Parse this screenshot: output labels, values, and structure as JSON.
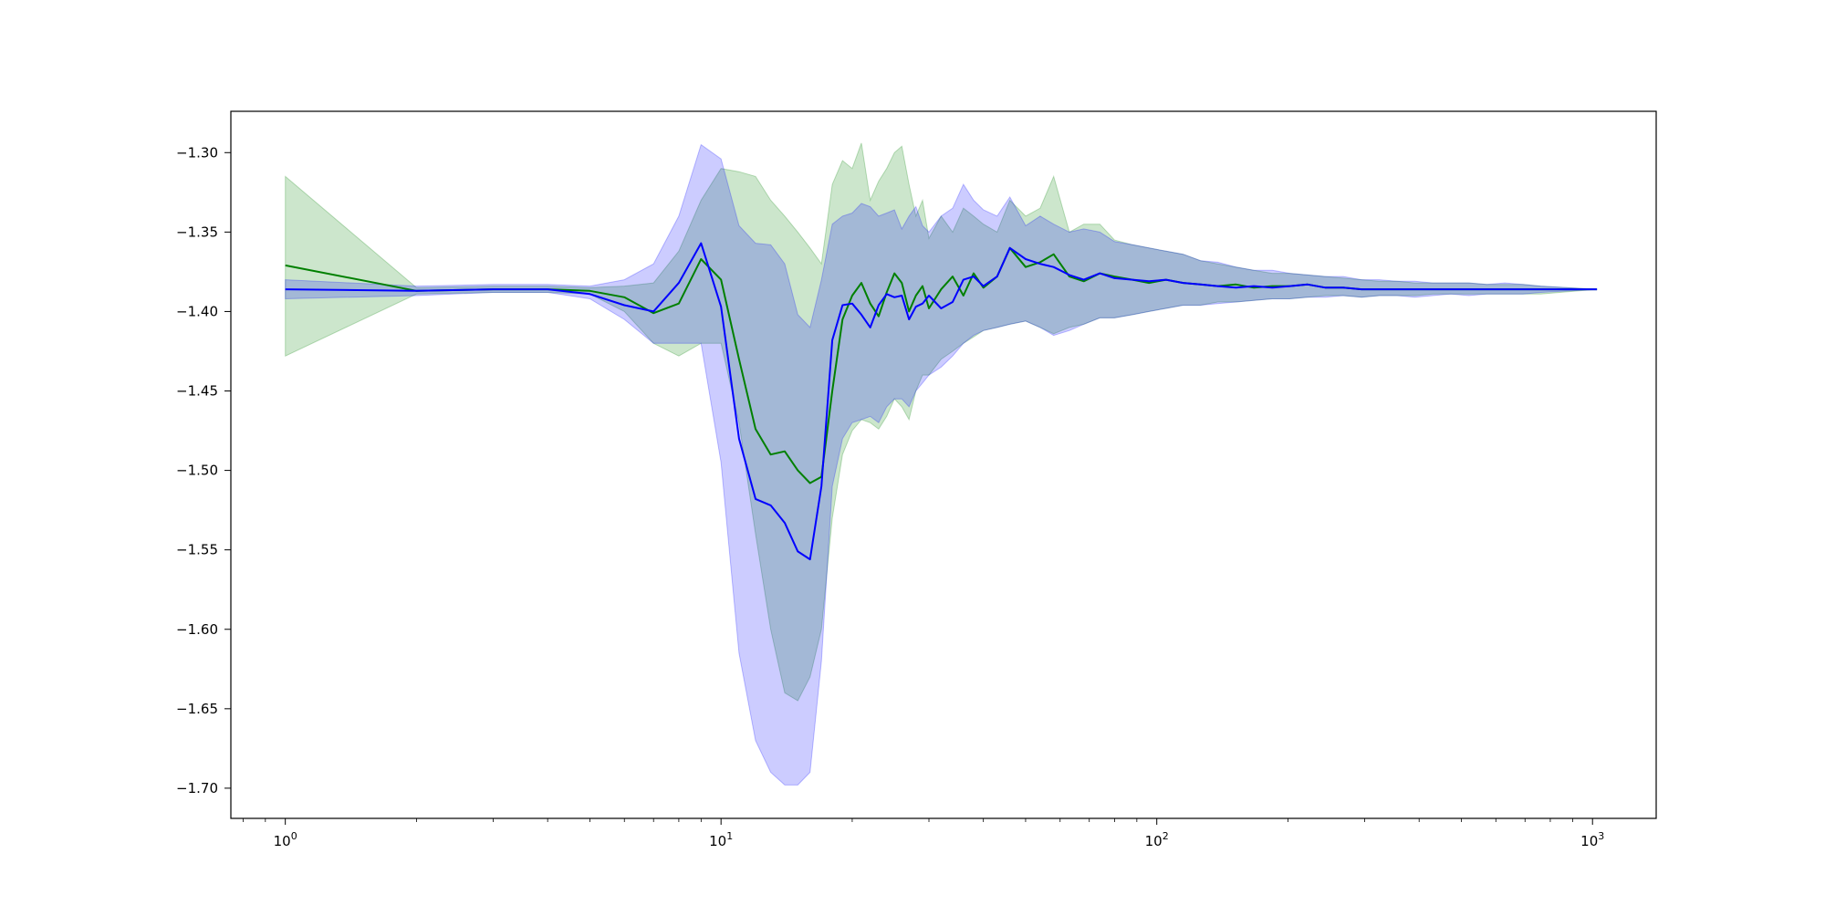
{
  "chart_data": {
    "type": "line",
    "title": "",
    "xlabel": "",
    "ylabel": "",
    "xscale": "log",
    "xlim": [
      0.75,
      1400
    ],
    "ylim": [
      -1.719,
      -1.274
    ],
    "grid": false,
    "legend": "none",
    "x_ticks": [
      {
        "value": 1,
        "base": "10",
        "exp": "0"
      },
      {
        "value": 10,
        "base": "10",
        "exp": "1"
      },
      {
        "value": 100,
        "base": "10",
        "exp": "2"
      },
      {
        "value": 1000,
        "base": "10",
        "exp": "3"
      }
    ],
    "y_ticks": [
      {
        "value": -1.3,
        "label": "−1.30"
      },
      {
        "value": -1.35,
        "label": "−1.35"
      },
      {
        "value": -1.4,
        "label": "−1.40"
      },
      {
        "value": -1.45,
        "label": "−1.45"
      },
      {
        "value": -1.5,
        "label": "−1.50"
      },
      {
        "value": -1.55,
        "label": "−1.55"
      },
      {
        "value": -1.6,
        "label": "−1.60"
      },
      {
        "value": -1.65,
        "label": "−1.65"
      },
      {
        "value": -1.7,
        "label": "−1.70"
      }
    ],
    "series": [
      {
        "color": "#008000",
        "band_color": "#008000",
        "band_opacity": 0.2,
        "x": [
          1,
          2,
          3,
          4,
          5,
          6,
          7,
          8,
          9,
          10,
          11,
          12,
          13,
          14,
          15,
          16,
          17,
          18,
          19,
          20,
          21,
          22,
          23,
          24,
          25,
          26,
          27,
          28,
          29,
          30,
          32,
          34,
          36,
          38,
          40,
          43,
          46,
          50,
          54,
          58,
          63,
          68,
          74,
          80,
          88,
          96,
          105,
          115,
          126,
          138,
          152,
          167,
          184,
          202,
          222,
          244,
          268,
          295,
          324,
          356,
          391,
          430,
          473,
          520,
          572,
          629,
          692,
          761,
          1024
        ],
        "y": [
          -1.371,
          -1.387,
          -1.386,
          -1.386,
          -1.387,
          -1.391,
          -1.401,
          -1.395,
          -1.367,
          -1.38,
          -1.43,
          -1.474,
          -1.49,
          -1.488,
          -1.5,
          -1.508,
          -1.504,
          -1.45,
          -1.405,
          -1.39,
          -1.382,
          -1.395,
          -1.403,
          -1.388,
          -1.376,
          -1.382,
          -1.4,
          -1.39,
          -1.384,
          -1.398,
          -1.386,
          -1.378,
          -1.39,
          -1.376,
          -1.385,
          -1.378,
          -1.36,
          -1.372,
          -1.369,
          -1.364,
          -1.378,
          -1.381,
          -1.376,
          -1.378,
          -1.38,
          -1.382,
          -1.38,
          -1.382,
          -1.383,
          -1.384,
          -1.383,
          -1.385,
          -1.384,
          -1.384,
          -1.383,
          -1.385,
          -1.385,
          -1.386,
          -1.386,
          -1.386,
          -1.386,
          -1.386,
          -1.386,
          -1.386,
          -1.386,
          -1.386,
          -1.386,
          -1.386,
          -1.386
        ],
        "lower": [
          -1.428,
          -1.389,
          -1.388,
          -1.388,
          -1.389,
          -1.4,
          -1.42,
          -1.428,
          -1.42,
          -1.42,
          -1.47,
          -1.54,
          -1.6,
          -1.64,
          -1.645,
          -1.63,
          -1.6,
          -1.53,
          -1.49,
          -1.475,
          -1.468,
          -1.47,
          -1.474,
          -1.466,
          -1.455,
          -1.46,
          -1.468,
          -1.45,
          -1.44,
          -1.44,
          -1.43,
          -1.425,
          -1.42,
          -1.416,
          -1.412,
          -1.41,
          -1.408,
          -1.406,
          -1.41,
          -1.414,
          -1.41,
          -1.408,
          -1.404,
          -1.404,
          -1.402,
          -1.4,
          -1.398,
          -1.396,
          -1.396,
          -1.394,
          -1.394,
          -1.393,
          -1.392,
          -1.392,
          -1.391,
          -1.39,
          -1.39,
          -1.391,
          -1.39,
          -1.39,
          -1.39,
          -1.389,
          -1.389,
          -1.389,
          -1.389,
          -1.389,
          -1.389,
          -1.389,
          -1.386
        ],
        "upper": [
          -1.315,
          -1.385,
          -1.384,
          -1.384,
          -1.385,
          -1.384,
          -1.382,
          -1.362,
          -1.33,
          -1.31,
          -1.312,
          -1.315,
          -1.33,
          -1.34,
          -1.35,
          -1.36,
          -1.37,
          -1.32,
          -1.305,
          -1.31,
          -1.294,
          -1.33,
          -1.318,
          -1.31,
          -1.3,
          -1.296,
          -1.32,
          -1.34,
          -1.33,
          -1.354,
          -1.34,
          -1.35,
          -1.335,
          -1.34,
          -1.345,
          -1.35,
          -1.33,
          -1.34,
          -1.335,
          -1.315,
          -1.35,
          -1.345,
          -1.345,
          -1.355,
          -1.358,
          -1.36,
          -1.362,
          -1.364,
          -1.368,
          -1.37,
          -1.372,
          -1.374,
          -1.376,
          -1.376,
          -1.377,
          -1.378,
          -1.379,
          -1.38,
          -1.381,
          -1.381,
          -1.382,
          -1.382,
          -1.382,
          -1.382,
          -1.383,
          -1.383,
          -1.383,
          -1.384,
          -1.386
        ]
      },
      {
        "color": "#0000ff",
        "band_color": "#0000ff",
        "band_opacity": 0.2,
        "x": [
          1,
          2,
          3,
          4,
          5,
          6,
          7,
          8,
          9,
          10,
          11,
          12,
          13,
          14,
          15,
          16,
          17,
          18,
          19,
          20,
          21,
          22,
          23,
          24,
          25,
          26,
          27,
          28,
          29,
          30,
          32,
          34,
          36,
          38,
          40,
          43,
          46,
          50,
          54,
          58,
          63,
          68,
          74,
          80,
          88,
          96,
          105,
          115,
          126,
          138,
          152,
          167,
          184,
          202,
          222,
          244,
          268,
          295,
          324,
          356,
          391,
          430,
          473,
          520,
          572,
          629,
          692,
          761,
          1024
        ],
        "y": [
          -1.386,
          -1.387,
          -1.386,
          -1.386,
          -1.389,
          -1.396,
          -1.4,
          -1.382,
          -1.357,
          -1.397,
          -1.48,
          -1.518,
          -1.522,
          -1.533,
          -1.551,
          -1.556,
          -1.51,
          -1.418,
          -1.396,
          -1.395,
          -1.402,
          -1.41,
          -1.396,
          -1.389,
          -1.391,
          -1.39,
          -1.405,
          -1.397,
          -1.395,
          -1.39,
          -1.398,
          -1.394,
          -1.38,
          -1.378,
          -1.384,
          -1.378,
          -1.36,
          -1.367,
          -1.37,
          -1.372,
          -1.377,
          -1.38,
          -1.376,
          -1.379,
          -1.38,
          -1.381,
          -1.38,
          -1.382,
          -1.383,
          -1.384,
          -1.385,
          -1.384,
          -1.385,
          -1.384,
          -1.383,
          -1.385,
          -1.385,
          -1.386,
          -1.386,
          -1.386,
          -1.386,
          -1.386,
          -1.386,
          -1.386,
          -1.386,
          -1.386,
          -1.386,
          -1.386,
          -1.386
        ],
        "lower": [
          -1.392,
          -1.39,
          -1.388,
          -1.388,
          -1.392,
          -1.405,
          -1.42,
          -1.42,
          -1.42,
          -1.495,
          -1.615,
          -1.67,
          -1.69,
          -1.698,
          -1.698,
          -1.69,
          -1.62,
          -1.51,
          -1.48,
          -1.47,
          -1.468,
          -1.466,
          -1.47,
          -1.46,
          -1.455,
          -1.455,
          -1.46,
          -1.45,
          -1.445,
          -1.44,
          -1.435,
          -1.428,
          -1.42,
          -1.415,
          -1.412,
          -1.41,
          -1.408,
          -1.406,
          -1.41,
          -1.415,
          -1.412,
          -1.408,
          -1.404,
          -1.404,
          -1.402,
          -1.4,
          -1.398,
          -1.396,
          -1.396,
          -1.395,
          -1.394,
          -1.393,
          -1.392,
          -1.392,
          -1.391,
          -1.391,
          -1.39,
          -1.391,
          -1.39,
          -1.39,
          -1.391,
          -1.39,
          -1.389,
          -1.39,
          -1.389,
          -1.389,
          -1.389,
          -1.388,
          -1.386
        ],
        "upper": [
          -1.38,
          -1.384,
          -1.383,
          -1.383,
          -1.384,
          -1.38,
          -1.37,
          -1.34,
          -1.295,
          -1.304,
          -1.346,
          -1.357,
          -1.358,
          -1.37,
          -1.402,
          -1.41,
          -1.38,
          -1.345,
          -1.34,
          -1.338,
          -1.332,
          -1.334,
          -1.34,
          -1.338,
          -1.336,
          -1.348,
          -1.34,
          -1.334,
          -1.346,
          -1.35,
          -1.34,
          -1.335,
          -1.32,
          -1.33,
          -1.336,
          -1.34,
          -1.328,
          -1.346,
          -1.34,
          -1.345,
          -1.35,
          -1.348,
          -1.35,
          -1.356,
          -1.358,
          -1.36,
          -1.362,
          -1.364,
          -1.368,
          -1.369,
          -1.372,
          -1.374,
          -1.374,
          -1.376,
          -1.377,
          -1.378,
          -1.378,
          -1.38,
          -1.38,
          -1.381,
          -1.381,
          -1.382,
          -1.382,
          -1.382,
          -1.383,
          -1.382,
          -1.383,
          -1.384,
          -1.386
        ]
      }
    ]
  }
}
